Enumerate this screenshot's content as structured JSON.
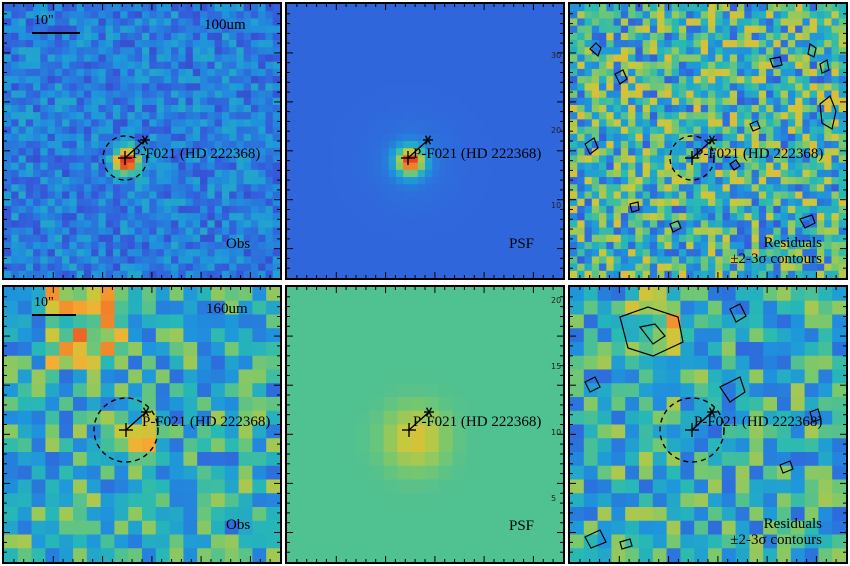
{
  "rows": [
    {
      "band": "100um",
      "scale_label": "10\"",
      "source_label": "P-F021 (HD 222368)",
      "obs_label": "Obs",
      "psf_label": "PSF",
      "residual_label_1": "Residuals",
      "residual_label_2": "±2-3σ contours",
      "psf_axis_ticks": [
        "10",
        "20",
        "30"
      ]
    },
    {
      "band": "160um",
      "scale_label": "10\"",
      "source_label": "P-F021 (HD 222368)",
      "obs_label": "Obs",
      "psf_label": "PSF",
      "residual_label_1": "Residuals",
      "residual_label_2": "±2-3σ contours",
      "psf_axis_ticks": [
        "5",
        "10",
        "15",
        "20"
      ]
    }
  ],
  "colors": {
    "background_obs_100": "#3a63b5",
    "psf_background_100": "#4a6dbf",
    "psf_background_160": "#72b89a",
    "peak": "#e8492a",
    "contour": "#000000"
  }
}
